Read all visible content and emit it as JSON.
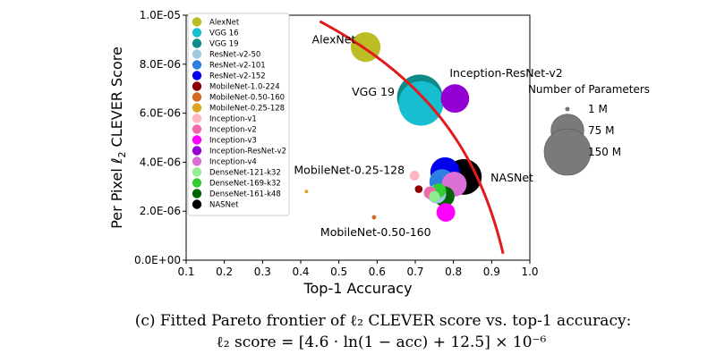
{
  "chart_data": {
    "type": "scatter",
    "xlabel": "Top-1 Accuracy",
    "ylabel_prefix": "Per Pixel ",
    "ylabel_math": "ℓ",
    "ylabel_sub": "2",
    "ylabel_suffix": " CLEVER Score",
    "xlim": [
      0.1,
      1.0
    ],
    "ylim": [
      0.0,
      1e-05
    ],
    "x_ticks": [
      0.1,
      0.2,
      0.3,
      0.4,
      0.5,
      0.6,
      0.7,
      0.8,
      0.9,
      1.0
    ],
    "x_tick_labels": [
      "0.1",
      "0.2",
      "0.3",
      "0.4",
      "0.5",
      "0.6",
      "0.7",
      "0.8",
      "0.9",
      "1.0"
    ],
    "y_ticks": [
      0.0,
      2e-06,
      4e-06,
      6e-06,
      8e-06,
      1e-05
    ],
    "y_tick_labels": [
      "0.0E+00",
      "2.0E-06",
      "4.0E-06",
      "6.0E-06",
      "8.0E-06",
      "1.0E-05"
    ],
    "points": [
      {
        "name": "AlexNet",
        "acc": 0.57,
        "score": 8.7e-06,
        "params_m": 61,
        "color": "#bcbd22"
      },
      {
        "name": "VGG 16",
        "acc": 0.715,
        "score": 6.4e-06,
        "params_m": 138,
        "color": "#17becf"
      },
      {
        "name": "VGG 19",
        "acc": 0.712,
        "score": 6.65e-06,
        "params_m": 144,
        "color": "#0f8a8a"
      },
      {
        "name": "ResNet-v2-50",
        "acc": 0.756,
        "score": 2.7e-06,
        "params_m": 25,
        "color": "#9ecae1"
      },
      {
        "name": "ResNet-v2-101",
        "acc": 0.77,
        "score": 3.2e-06,
        "params_m": 44,
        "color": "#2c7fe0"
      },
      {
        "name": "ResNet-v2-152",
        "acc": 0.778,
        "score": 3.6e-06,
        "params_m": 60,
        "color": "#0000ee"
      },
      {
        "name": "MobileNet-1.0-224",
        "acc": 0.709,
        "score": 2.9e-06,
        "params_m": 4.2,
        "color": "#8b0000"
      },
      {
        "name": "MobileNet-0.50-160",
        "acc": 0.592,
        "score": 1.75e-06,
        "params_m": 1.3,
        "color": "#d2691e"
      },
      {
        "name": "MobileNet-0.25-128",
        "acc": 0.415,
        "score": 2.8e-06,
        "params_m": 0.5,
        "color": "#daa520"
      },
      {
        "name": "Inception-v1",
        "acc": 0.698,
        "score": 3.45e-06,
        "params_m": 6.6,
        "color": "#ffb6c1"
      },
      {
        "name": "Inception-v2",
        "acc": 0.739,
        "score": 2.75e-06,
        "params_m": 11,
        "color": "#f06aa8"
      },
      {
        "name": "Inception-v3",
        "acc": 0.78,
        "score": 1.95e-06,
        "params_m": 24,
        "color": "#ff00ff"
      },
      {
        "name": "Inception-ResNet-v2",
        "acc": 0.804,
        "score": 6.6e-06,
        "params_m": 56,
        "color": "#9400d3"
      },
      {
        "name": "Inception-v4",
        "acc": 0.802,
        "score": 3.1e-06,
        "params_m": 43,
        "color": "#da70d6"
      },
      {
        "name": "DenseNet-121-k32",
        "acc": 0.75,
        "score": 2.6e-06,
        "params_m": 8,
        "color": "#90ee90"
      },
      {
        "name": "DenseNet-169-k32",
        "acc": 0.762,
        "score": 2.85e-06,
        "params_m": 14,
        "color": "#32cd32"
      },
      {
        "name": "DenseNet-161-k48",
        "acc": 0.776,
        "score": 2.6e-06,
        "params_m": 29,
        "color": "#006400"
      },
      {
        "name": "NASNet",
        "acc": 0.827,
        "score": 3.4e-06,
        "params_m": 89,
        "color": "#000000"
      }
    ],
    "annotations": [
      {
        "text": "AlexNet",
        "for": "AlexNet"
      },
      {
        "text": "VGG 19",
        "for": "VGG 19"
      },
      {
        "text": "Inception-ResNet-v2",
        "for": "Inception-ResNet-v2"
      },
      {
        "text": "MobileNet-0.25-128",
        "for": "MobileNet-0.25-128"
      },
      {
        "text": "NASNet",
        "for": "NASNet"
      },
      {
        "text": "MobileNet-0.50-160",
        "for": "MobileNet-0.50-160"
      }
    ],
    "pareto": {
      "a": 4.6,
      "b": 12.5,
      "scale": 1e-06,
      "acc_start": 0.45,
      "acc_end": 0.93,
      "color": "#e31a1c"
    },
    "size_legend": {
      "title": "Number of Parameters",
      "entries": [
        {
          "label": "1 M",
          "params_m": 1
        },
        {
          "label": "75 M",
          "params_m": 75
        },
        {
          "label": "150 M",
          "params_m": 150
        }
      ]
    }
  },
  "caption": {
    "line1": "(c) Fitted Pareto frontier of ℓ₂ CLEVER score vs. top-1 accuracy:",
    "line2": "ℓ₂ score = [4.6 · ln(1 − acc) + 12.5] × 10⁻⁶"
  }
}
